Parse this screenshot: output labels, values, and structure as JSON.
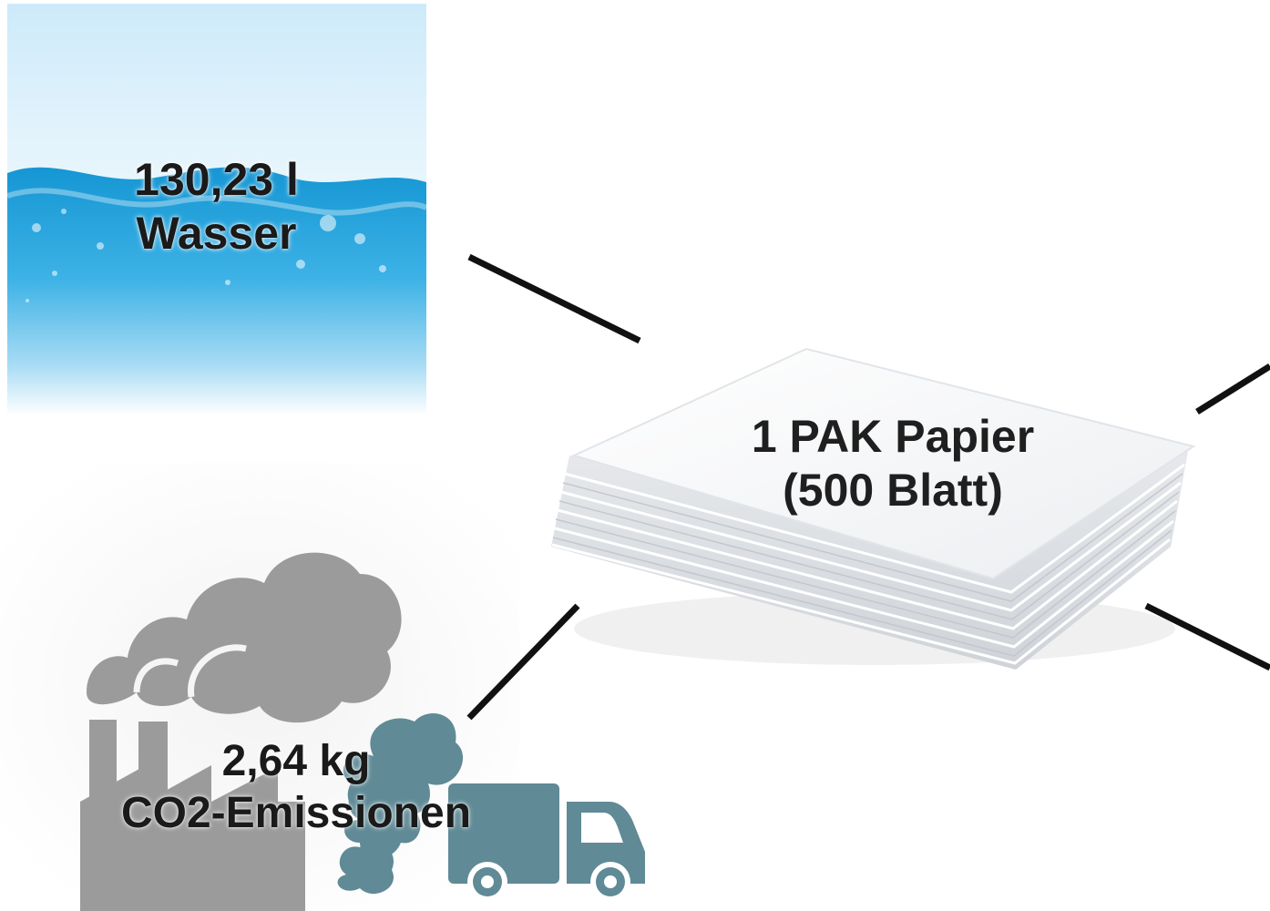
{
  "nodes": {
    "paper": {
      "line1": "1 PAK Papier",
      "line2": "(500 Blatt)"
    },
    "water": {
      "line1": "130,23 l",
      "line2": "Wasser"
    },
    "co2": {
      "line1": "2,64 kg",
      "line2": "CO2-Emissionen"
    }
  },
  "colors": {
    "water_light": "#d8f0fb",
    "water_deep": "#1a9ed6",
    "smoke_gray": "#9a9a9a",
    "truck_teal": "#5f8a96",
    "connector": "#111111",
    "paper": "#f4f5f7"
  },
  "icons": [
    "water-wave-icon",
    "paper-stack-icon",
    "factory-smoke-icon",
    "delivery-truck-icon"
  ]
}
